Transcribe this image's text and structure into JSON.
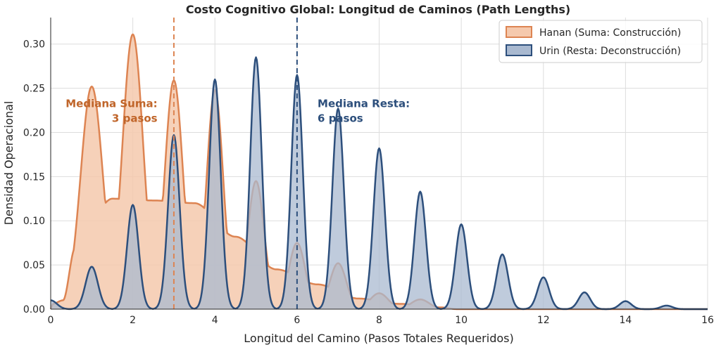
{
  "chart_data": {
    "type": "area",
    "title": "Costo Cognitivo Global: Longitud de Caminos (Path Lengths)",
    "xlabel": "Longitud del Camino (Pasos Totales Requeridos)",
    "ylabel": "Densidad Operacional",
    "xlim": [
      0,
      16
    ],
    "ylim": [
      0,
      0.33
    ],
    "xticks": [
      0,
      2,
      4,
      6,
      8,
      10,
      12,
      14,
      16
    ],
    "yticks": [
      0.0,
      0.05,
      0.1,
      0.15,
      0.2,
      0.25,
      0.3
    ],
    "grid": true,
    "legend_position": "top-right",
    "series": [
      {
        "name": "Hanan (Suma: Construcción)",
        "color": "#dd8452",
        "fill": "#f5c9ad",
        "peaks": [
          {
            "x": 1,
            "y": 0.252,
            "w": 0.27
          },
          {
            "x": 2,
            "y": 0.311,
            "w": 0.25
          },
          {
            "x": 3,
            "y": 0.259,
            "w": 0.22
          },
          {
            "x": 4,
            "y": 0.248,
            "w": 0.2
          },
          {
            "x": 5,
            "y": 0.145,
            "w": 0.2
          },
          {
            "x": 6,
            "y": 0.075,
            "w": 0.2
          },
          {
            "x": 7,
            "y": 0.052,
            "w": 0.2
          },
          {
            "x": 8,
            "y": 0.018,
            "w": 0.22
          },
          {
            "x": 9,
            "y": 0.011,
            "w": 0.22
          }
        ],
        "baseline": [
          {
            "x": 0.05,
            "y": 0.006
          },
          {
            "x": 0.3,
            "y": 0.01
          },
          {
            "x": 0.6,
            "y": 0.07
          },
          {
            "x": 1.5,
            "y": 0.125
          },
          {
            "x": 2.5,
            "y": 0.123
          },
          {
            "x": 3.5,
            "y": 0.12
          },
          {
            "x": 4.5,
            "y": 0.082
          },
          {
            "x": 5.5,
            "y": 0.045
          },
          {
            "x": 6.5,
            "y": 0.028
          },
          {
            "x": 7.5,
            "y": 0.012
          },
          {
            "x": 8.5,
            "y": 0.006
          },
          {
            "x": 9.5,
            "y": 0.002
          },
          {
            "x": 9.9,
            "y": 0.0
          }
        ]
      },
      {
        "name": "Urin (Resta: Deconstrucción)",
        "color": "#2d4f7c",
        "fill": "#a9b9d0",
        "peaks": [
          {
            "x": 0,
            "y": 0.01,
            "w": 0.15
          },
          {
            "x": 1,
            "y": 0.048,
            "w": 0.15
          },
          {
            "x": 2,
            "y": 0.118,
            "w": 0.14
          },
          {
            "x": 3,
            "y": 0.197,
            "w": 0.14
          },
          {
            "x": 4,
            "y": 0.26,
            "w": 0.14
          },
          {
            "x": 5,
            "y": 0.285,
            "w": 0.14
          },
          {
            "x": 6,
            "y": 0.265,
            "w": 0.14
          },
          {
            "x": 7,
            "y": 0.227,
            "w": 0.14
          },
          {
            "x": 8,
            "y": 0.182,
            "w": 0.14
          },
          {
            "x": 9,
            "y": 0.133,
            "w": 0.14
          },
          {
            "x": 10,
            "y": 0.096,
            "w": 0.14
          },
          {
            "x": 11,
            "y": 0.062,
            "w": 0.14
          },
          {
            "x": 12,
            "y": 0.036,
            "w": 0.14
          },
          {
            "x": 13,
            "y": 0.019,
            "w": 0.14
          },
          {
            "x": 14,
            "y": 0.009,
            "w": 0.14
          },
          {
            "x": 15,
            "y": 0.004,
            "w": 0.14
          }
        ],
        "baseline": []
      }
    ],
    "medians": [
      {
        "x": 3,
        "color": "#dd8452",
        "label_lines": [
          "Mediana Suma:",
          "3 pasos"
        ],
        "label_color": "#c0652a",
        "align": "end",
        "label_x": 2.6,
        "label_y": 0.22
      },
      {
        "x": 6,
        "color": "#2d4f7c",
        "label_lines": [
          "Mediana Resta:",
          "6 pasos"
        ],
        "label_color": "#2d4f7c",
        "align": "start",
        "label_x": 6.5,
        "label_y": 0.22
      }
    ]
  }
}
